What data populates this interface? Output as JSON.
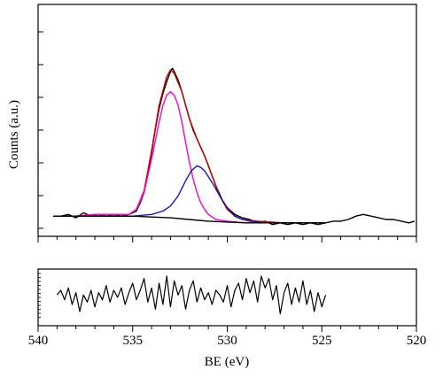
{
  "chart_data": {
    "type": "line",
    "xlabel": "BE (eV)",
    "ylabel": "Counts (a.u.)",
    "x_reversed": true,
    "xlim": [
      540,
      520
    ],
    "x_ticks": [
      540,
      535,
      530,
      525,
      520
    ],
    "grid": false,
    "main_panel": {
      "y_scale": "arbitrary (no tick labels)",
      "series": [
        {
          "role": "raw spectrum",
          "color": "#000000",
          "points": [
            [
              539.2,
              0.04
            ],
            [
              538.8,
              0.04
            ],
            [
              538.4,
              0.05
            ],
            [
              538.0,
              0.03
            ],
            [
              537.6,
              0.06
            ],
            [
              537.2,
              0.04
            ],
            [
              536.8,
              0.05
            ],
            [
              536.4,
              0.04
            ],
            [
              536.0,
              0.05
            ],
            [
              535.6,
              0.04
            ],
            [
              535.2,
              0.05
            ],
            [
              534.8,
              0.07
            ],
            [
              534.6,
              0.12
            ],
            [
              534.4,
              0.18
            ],
            [
              534.2,
              0.3
            ],
            [
              534.0,
              0.42
            ],
            [
              533.8,
              0.56
            ],
            [
              533.6,
              0.68
            ],
            [
              533.4,
              0.77
            ],
            [
              533.2,
              0.84
            ],
            [
              533.0,
              0.9
            ],
            [
              532.9,
              0.92
            ],
            [
              532.8,
              0.9
            ],
            [
              532.6,
              0.85
            ],
            [
              532.4,
              0.78
            ],
            [
              532.2,
              0.7
            ],
            [
              532.0,
              0.62
            ],
            [
              531.8,
              0.55
            ],
            [
              531.6,
              0.5
            ],
            [
              531.4,
              0.45
            ],
            [
              531.2,
              0.4
            ],
            [
              531.0,
              0.34
            ],
            [
              530.8,
              0.28
            ],
            [
              530.6,
              0.22
            ],
            [
              530.4,
              0.17
            ],
            [
              530.2,
              0.12
            ],
            [
              530.0,
              0.09
            ],
            [
              529.6,
              0.05
            ],
            [
              529.2,
              0.03
            ],
            [
              528.8,
              0.02
            ],
            [
              528.4,
              0.0
            ],
            [
              528.0,
              0.01
            ],
            [
              527.6,
              -0.01
            ],
            [
              527.2,
              0.0
            ],
            [
              526.8,
              -0.01
            ],
            [
              526.4,
              0.0
            ],
            [
              526.0,
              -0.01
            ],
            [
              525.6,
              0.0
            ],
            [
              525.2,
              -0.01
            ],
            [
              524.8,
              0.0
            ],
            [
              524.4,
              0.01
            ],
            [
              524.0,
              0.01
            ],
            [
              523.6,
              0.02
            ],
            [
              523.2,
              0.04
            ],
            [
              522.8,
              0.05
            ],
            [
              522.4,
              0.04
            ],
            [
              522.0,
              0.03
            ],
            [
              521.6,
              0.02
            ],
            [
              521.2,
              0.02
            ],
            [
              520.8,
              0.01
            ],
            [
              520.4,
              0.0
            ],
            [
              520.1,
              0.01
            ]
          ]
        },
        {
          "role": "fit envelope",
          "color": "#c00000",
          "points": [
            [
              539.2,
              0.04
            ],
            [
              538.0,
              0.04
            ],
            [
              537.0,
              0.05
            ],
            [
              536.0,
              0.05
            ],
            [
              535.2,
              0.05
            ],
            [
              534.8,
              0.08
            ],
            [
              534.4,
              0.19
            ],
            [
              534.0,
              0.43
            ],
            [
              533.6,
              0.7
            ],
            [
              533.2,
              0.87
            ],
            [
              533.0,
              0.91
            ],
            [
              532.8,
              0.89
            ],
            [
              532.4,
              0.78
            ],
            [
              532.0,
              0.62
            ],
            [
              531.6,
              0.5
            ],
            [
              531.2,
              0.4
            ],
            [
              530.8,
              0.28
            ],
            [
              530.4,
              0.16
            ],
            [
              530.0,
              0.08
            ],
            [
              529.6,
              0.04
            ],
            [
              529.2,
              0.02
            ],
            [
              528.4,
              0.01
            ],
            [
              527.0,
              0.0
            ],
            [
              526.0,
              0.0
            ],
            [
              524.8,
              0.0
            ]
          ]
        },
        {
          "role": "component peak 1",
          "color": "#ff00cc",
          "points": [
            [
              539.2,
              0.04
            ],
            [
              538.0,
              0.04
            ],
            [
              537.0,
              0.05
            ],
            [
              536.0,
              0.05
            ],
            [
              535.2,
              0.05
            ],
            [
              534.8,
              0.08
            ],
            [
              534.4,
              0.18
            ],
            [
              534.0,
              0.38
            ],
            [
              533.6,
              0.6
            ],
            [
              533.4,
              0.7
            ],
            [
              533.2,
              0.76
            ],
            [
              533.0,
              0.78
            ],
            [
              532.8,
              0.76
            ],
            [
              532.6,
              0.7
            ],
            [
              532.4,
              0.6
            ],
            [
              532.2,
              0.48
            ],
            [
              532.0,
              0.36
            ],
            [
              531.8,
              0.26
            ],
            [
              531.6,
              0.18
            ],
            [
              531.4,
              0.12
            ],
            [
              531.2,
              0.08
            ],
            [
              531.0,
              0.05
            ],
            [
              530.6,
              0.02
            ],
            [
              530.0,
              0.01
            ],
            [
              529.0,
              0.0
            ],
            [
              527.0,
              0.0
            ],
            [
              524.8,
              0.0
            ]
          ]
        },
        {
          "role": "component peak 2",
          "color": "#1a1aaa",
          "points": [
            [
              539.2,
              0.04
            ],
            [
              537.0,
              0.04
            ],
            [
              535.0,
              0.04
            ],
            [
              534.0,
              0.05
            ],
            [
              533.4,
              0.07
            ],
            [
              533.0,
              0.1
            ],
            [
              532.6,
              0.16
            ],
            [
              532.2,
              0.25
            ],
            [
              531.9,
              0.31
            ],
            [
              531.6,
              0.34
            ],
            [
              531.4,
              0.33
            ],
            [
              531.2,
              0.31
            ],
            [
              530.8,
              0.24
            ],
            [
              530.4,
              0.16
            ],
            [
              530.0,
              0.09
            ],
            [
              529.6,
              0.04
            ],
            [
              529.2,
              0.02
            ],
            [
              528.8,
              0.01
            ],
            [
              528.0,
              0.0
            ],
            [
              526.0,
              0.0
            ],
            [
              524.8,
              0.0
            ]
          ]
        },
        {
          "role": "background",
          "color": "#000000",
          "points": [
            [
              539.2,
              0.04
            ],
            [
              537.0,
              0.04
            ],
            [
              535.0,
              0.04
            ],
            [
              534.0,
              0.035
            ],
            [
              533.0,
              0.03
            ],
            [
              532.0,
              0.02
            ],
            [
              531.0,
              0.01
            ],
            [
              530.0,
              0.005
            ],
            [
              529.0,
              0.0
            ],
            [
              527.0,
              0.0
            ],
            [
              524.8,
              0.0
            ]
          ]
        }
      ]
    },
    "residual_panel": {
      "y_scale": "arbitrary (no tick labels)",
      "series": [
        {
          "role": "residual",
          "color": "#000000",
          "points": [
            [
              539.0,
              0.1
            ],
            [
              538.8,
              0.3
            ],
            [
              538.6,
              -0.1
            ],
            [
              538.4,
              0.4
            ],
            [
              538.2,
              -0.3
            ],
            [
              538.0,
              0.2
            ],
            [
              537.8,
              -0.6
            ],
            [
              537.6,
              0.1
            ],
            [
              537.4,
              -0.2
            ],
            [
              537.2,
              0.3
            ],
            [
              537.0,
              -0.4
            ],
            [
              536.8,
              0.2
            ],
            [
              536.6,
              -0.1
            ],
            [
              536.4,
              0.5
            ],
            [
              536.2,
              -0.2
            ],
            [
              536.0,
              0.3
            ],
            [
              535.8,
              0.0
            ],
            [
              535.6,
              0.4
            ],
            [
              535.4,
              -0.3
            ],
            [
              535.2,
              0.2
            ],
            [
              535.0,
              0.6
            ],
            [
              534.8,
              -0.1
            ],
            [
              534.6,
              0.3
            ],
            [
              534.4,
              0.8
            ],
            [
              534.2,
              -0.2
            ],
            [
              534.0,
              0.4
            ],
            [
              533.8,
              -0.5
            ],
            [
              533.6,
              0.6
            ],
            [
              533.4,
              -0.3
            ],
            [
              533.2,
              0.9
            ],
            [
              533.0,
              -0.4
            ],
            [
              532.8,
              0.7
            ],
            [
              532.6,
              0.1
            ],
            [
              532.4,
              0.5
            ],
            [
              532.2,
              -0.5
            ],
            [
              532.0,
              0.3
            ],
            [
              531.8,
              0.7
            ],
            [
              531.6,
              -0.2
            ],
            [
              531.4,
              0.4
            ],
            [
              531.2,
              -0.1
            ],
            [
              531.0,
              0.2
            ],
            [
              530.8,
              -0.3
            ],
            [
              530.6,
              0.3
            ],
            [
              530.4,
              0.1
            ],
            [
              530.2,
              -0.2
            ],
            [
              530.0,
              0.5
            ],
            [
              529.8,
              -0.4
            ],
            [
              529.6,
              0.3
            ],
            [
              529.4,
              0.6
            ],
            [
              529.2,
              -0.1
            ],
            [
              529.0,
              0.8
            ],
            [
              528.8,
              0.2
            ],
            [
              528.6,
              0.7
            ],
            [
              528.4,
              -0.2
            ],
            [
              528.2,
              0.9
            ],
            [
              528.0,
              0.4
            ],
            [
              527.8,
              0.8
            ],
            [
              527.6,
              -0.1
            ],
            [
              527.4,
              0.5
            ],
            [
              527.2,
              -0.7
            ],
            [
              527.0,
              0.2
            ],
            [
              526.8,
              0.6
            ],
            [
              526.6,
              -0.3
            ],
            [
              526.4,
              0.4
            ],
            [
              526.2,
              -0.2
            ],
            [
              526.0,
              0.7
            ],
            [
              525.8,
              -0.3
            ],
            [
              525.6,
              0.3
            ],
            [
              525.4,
              -0.6
            ],
            [
              525.2,
              0.2
            ],
            [
              525.0,
              -0.4
            ],
            [
              524.8,
              0.1
            ]
          ]
        }
      ]
    }
  }
}
